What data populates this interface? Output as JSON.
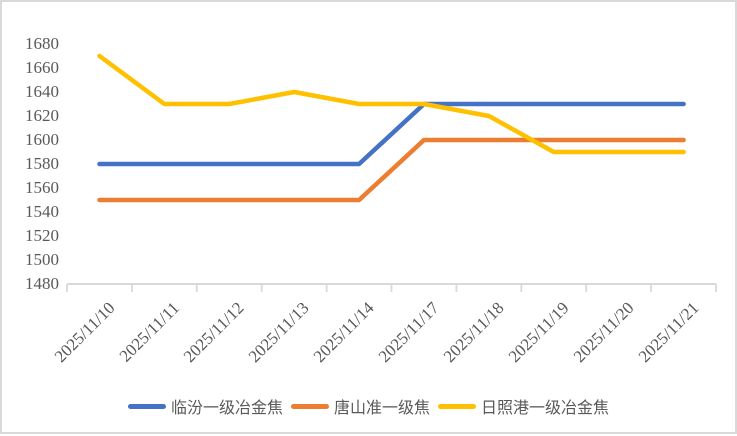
{
  "chart_data": {
    "type": "line",
    "title": "",
    "xlabel": "",
    "ylabel": "",
    "categories": [
      "2025/11/10",
      "2025/11/11",
      "2025/11/12",
      "2025/11/13",
      "2025/11/14",
      "2025/11/17",
      "2025/11/18",
      "2025/11/19",
      "2025/11/20",
      "2025/11/21"
    ],
    "series": [
      {
        "name": "临汾一级冶金焦",
        "color": "#4472C4",
        "values": [
          1580,
          1580,
          1580,
          1580,
          1580,
          1630,
          1630,
          1630,
          1630,
          1630
        ]
      },
      {
        "name": "唐山准一级焦",
        "color": "#ED7D31",
        "values": [
          1550,
          1550,
          1550,
          1550,
          1550,
          1600,
          1600,
          1600,
          1600,
          1600
        ]
      },
      {
        "name": "日照港一级冶金焦",
        "color": "#FFC000",
        "values": [
          1670,
          1630,
          1630,
          1640,
          1630,
          1630,
          1620,
          1590,
          1590,
          1590
        ]
      }
    ],
    "ylim": [
      1480,
      1680
    ],
    "yticks": [
      1480,
      1500,
      1520,
      1540,
      1560,
      1580,
      1600,
      1620,
      1640,
      1660,
      1680
    ],
    "grid": false,
    "legend_position": "bottom",
    "axis_color": "#D9D9D9",
    "text_color": "#595959"
  }
}
